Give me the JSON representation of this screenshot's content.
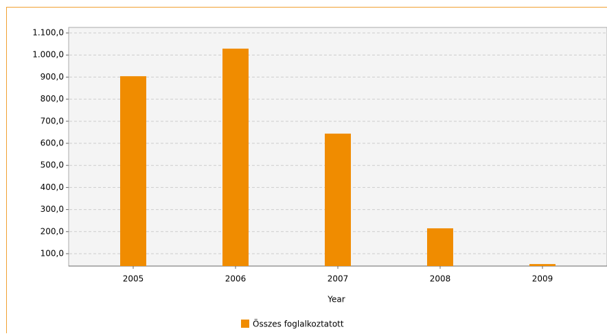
{
  "chart_data": {
    "type": "bar",
    "x_label": "Year",
    "categories": [
      "2005",
      "2006",
      "2007",
      "2008",
      "2009"
    ],
    "series": [
      {
        "name": "Összes foglalkoztatott",
        "color": "#f08c00",
        "values": [
          904,
          1029,
          644,
          215,
          53
        ]
      }
    ],
    "ylim": [
      44,
      1125
    ],
    "yticks": [
      {
        "value": 100,
        "label": "100,0"
      },
      {
        "value": 200,
        "label": "200,0"
      },
      {
        "value": 300,
        "label": "300,0"
      },
      {
        "value": 400,
        "label": "400,0"
      },
      {
        "value": 500,
        "label": "500,0"
      },
      {
        "value": 600,
        "label": "600,0"
      },
      {
        "value": 700,
        "label": "700,0"
      },
      {
        "value": 800,
        "label": "800,0"
      },
      {
        "value": 900,
        "label": "900,0"
      },
      {
        "value": 1000,
        "label": "1.000,0"
      },
      {
        "value": 1100,
        "label": "1.100,0"
      }
    ],
    "grid": true,
    "legend": "bottom"
  }
}
